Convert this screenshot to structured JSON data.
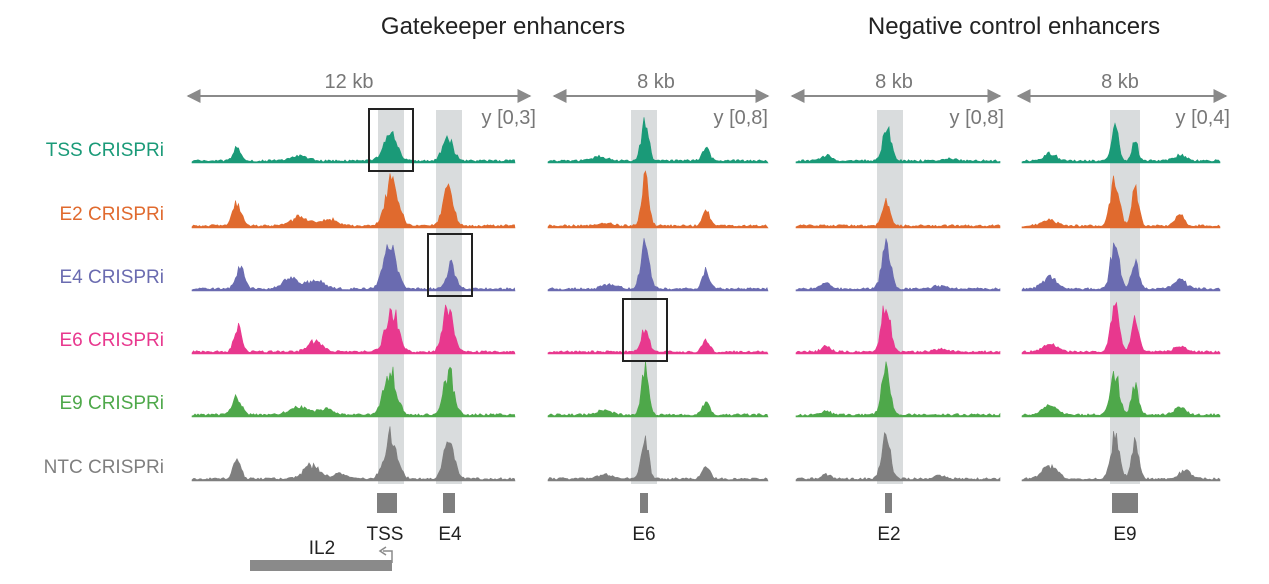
{
  "titles": {
    "gatekeeper": "Gatekeeper enhancers",
    "negative": "Negative control enhancers"
  },
  "panels": [
    {
      "id": "p1",
      "scale": "12 kb",
      "range": "y [0,3]"
    },
    {
      "id": "p2",
      "scale": "8 kb",
      "range": "y [0,8]"
    },
    {
      "id": "p3",
      "scale": "8 kb",
      "range": "y [0,8]"
    },
    {
      "id": "p4",
      "scale": "8 kb",
      "range": "y [0,4]"
    }
  ],
  "tracks": [
    {
      "label": "TSS CRISPRi",
      "color": "#1a9a78"
    },
    {
      "label": "E2 CRISPRi",
      "color": "#e06a2e"
    },
    {
      "label": "E4 CRISPRi",
      "color": "#6a6bb0"
    },
    {
      "label": "E6 CRISPRi",
      "color": "#e8388e"
    },
    {
      "label": "E9 CRISPRi",
      "color": "#4ea84a"
    },
    {
      "label": "NTC CRISPRi",
      "color": "#7f7f7f"
    }
  ],
  "features": {
    "tss": "TSS",
    "e4": "E4",
    "e6": "E6",
    "e2": "E2",
    "e9": "E9",
    "gene": "IL2"
  },
  "colors": {
    "highlight": "#d9dcdd",
    "arrow": "#8a8a8a",
    "feature": "#7f7f7f",
    "box": "#222222"
  }
}
